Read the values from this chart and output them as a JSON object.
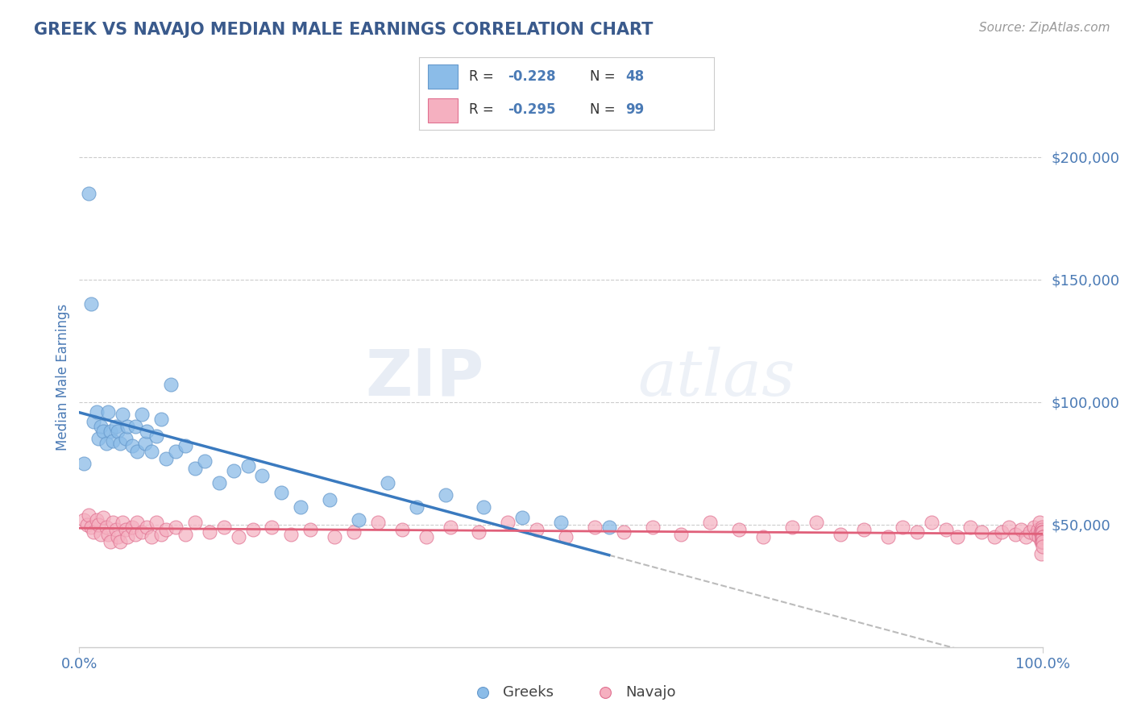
{
  "title": "GREEK VS NAVAJO MEDIAN MALE EARNINGS CORRELATION CHART",
  "source_text": "Source: ZipAtlas.com",
  "ylabel": "Median Male Earnings",
  "watermark_zip": "ZIP",
  "watermark_atlas": "atlas",
  "xlim": [
    0.0,
    1.0
  ],
  "ylim": [
    0,
    220000
  ],
  "yticks": [
    0,
    50000,
    100000,
    150000,
    200000
  ],
  "ytick_labels": [
    "",
    "$50,000",
    "$100,000",
    "$150,000",
    "$200,000"
  ],
  "xtick_labels": [
    "0.0%",
    "100.0%"
  ],
  "title_color": "#3a5a8c",
  "axis_label_color": "#4a7ab5",
  "tick_color": "#4a7ab5",
  "source_color": "#999999",
  "grid_color": "#cccccc",
  "background_color": "#ffffff",
  "greeks_color": "#8bbce8",
  "greeks_edge_color": "#6699cc",
  "navajo_color": "#f5b0c0",
  "navajo_edge_color": "#e07090",
  "greeks_line_color": "#3a7abf",
  "navajo_line_color": "#e0607a",
  "dashed_line_color": "#bbbbbb",
  "legend_border_color": "#cccccc",
  "greeks_R": -0.228,
  "greeks_N": 48,
  "navajo_R": -0.295,
  "navajo_N": 99,
  "greeks_x": [
    0.005,
    0.01,
    0.012,
    0.015,
    0.018,
    0.02,
    0.022,
    0.025,
    0.028,
    0.03,
    0.032,
    0.035,
    0.038,
    0.04,
    0.042,
    0.045,
    0.048,
    0.05,
    0.055,
    0.058,
    0.06,
    0.065,
    0.068,
    0.07,
    0.075,
    0.08,
    0.085,
    0.09,
    0.095,
    0.1,
    0.11,
    0.12,
    0.13,
    0.145,
    0.16,
    0.175,
    0.19,
    0.21,
    0.23,
    0.26,
    0.29,
    0.32,
    0.35,
    0.38,
    0.42,
    0.46,
    0.5,
    0.55
  ],
  "greeks_y": [
    75000,
    185000,
    140000,
    92000,
    96000,
    85000,
    90000,
    88000,
    83000,
    96000,
    88000,
    84000,
    90000,
    88000,
    83000,
    95000,
    85000,
    90000,
    82000,
    90000,
    80000,
    95000,
    83000,
    88000,
    80000,
    86000,
    93000,
    77000,
    107000,
    80000,
    82000,
    73000,
    76000,
    67000,
    72000,
    74000,
    70000,
    63000,
    57000,
    60000,
    52000,
    67000,
    57000,
    62000,
    57000,
    53000,
    51000,
    49000
  ],
  "navajo_x": [
    0.005,
    0.008,
    0.01,
    0.012,
    0.015,
    0.018,
    0.02,
    0.022,
    0.025,
    0.028,
    0.03,
    0.032,
    0.035,
    0.038,
    0.04,
    0.042,
    0.045,
    0.048,
    0.05,
    0.055,
    0.058,
    0.06,
    0.065,
    0.07,
    0.075,
    0.08,
    0.085,
    0.09,
    0.1,
    0.11,
    0.12,
    0.135,
    0.15,
    0.165,
    0.18,
    0.2,
    0.22,
    0.24,
    0.265,
    0.285,
    0.31,
    0.335,
    0.36,
    0.385,
    0.415,
    0.445,
    0.475,
    0.505,
    0.535,
    0.565,
    0.595,
    0.625,
    0.655,
    0.685,
    0.71,
    0.74,
    0.765,
    0.79,
    0.815,
    0.84,
    0.855,
    0.87,
    0.885,
    0.9,
    0.912,
    0.925,
    0.937,
    0.95,
    0.958,
    0.965,
    0.972,
    0.978,
    0.983,
    0.987,
    0.991,
    0.993,
    0.995,
    0.996,
    0.997,
    0.998,
    0.9985,
    0.9988,
    0.999,
    0.9992,
    0.9993,
    0.9994,
    0.9995,
    0.9996,
    0.9997,
    0.9998,
    0.9999,
    0.9999,
    1.0,
    1.0,
    1.0,
    1.0,
    1.0,
    1.0,
    1.0
  ],
  "navajo_y": [
    52000,
    50000,
    54000,
    49000,
    47000,
    52000,
    50000,
    46000,
    53000,
    49000,
    46000,
    43000,
    51000,
    48000,
    45000,
    43000,
    51000,
    48000,
    45000,
    49000,
    46000,
    51000,
    47000,
    49000,
    45000,
    51000,
    46000,
    48000,
    49000,
    46000,
    51000,
    47000,
    49000,
    45000,
    48000,
    49000,
    46000,
    48000,
    45000,
    47000,
    51000,
    48000,
    45000,
    49000,
    47000,
    51000,
    48000,
    45000,
    49000,
    47000,
    49000,
    46000,
    51000,
    48000,
    45000,
    49000,
    51000,
    46000,
    48000,
    45000,
    49000,
    47000,
    51000,
    48000,
    45000,
    49000,
    47000,
    45000,
    47000,
    49000,
    46000,
    48000,
    45000,
    47000,
    49000,
    46000,
    48000,
    45000,
    51000,
    47000,
    38000,
    47000,
    43000,
    49000,
    47000,
    45000,
    48000,
    46000,
    43000,
    45000,
    47000,
    45000,
    43000,
    47000,
    45000,
    43000,
    45000,
    43000,
    41000
  ]
}
